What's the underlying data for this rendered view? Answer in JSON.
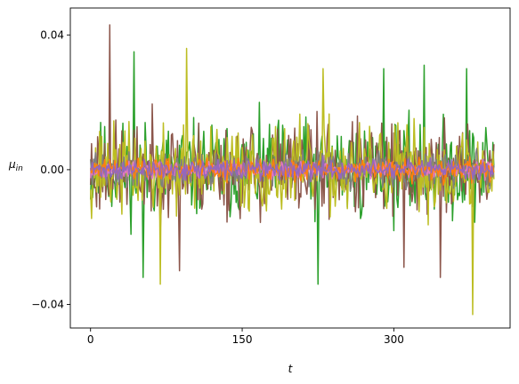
{
  "chart_data": {
    "type": "line",
    "title": "",
    "xlabel": "t",
    "ylabel_main": "μ",
    "ylabel_sub": "in",
    "xlim": [
      -20,
      415
    ],
    "ylim": [
      -0.047,
      0.048
    ],
    "xticks": [
      0,
      150,
      300
    ],
    "xtick_labels": [
      "0",
      "150",
      "300"
    ],
    "yticks": [
      -0.04,
      0.0,
      0.04
    ],
    "ytick_labels": [
      "−0.04",
      "0.00",
      "0.04"
    ],
    "grid": false,
    "legend": "none",
    "n_points": 400,
    "series": [
      {
        "color": "#2ca02c",
        "amplitude": 0.0175,
        "seed": 11,
        "spikes": [
          [
            43,
            0.035
          ],
          [
            52,
            -0.032
          ],
          [
            225,
            -0.034
          ],
          [
            290,
            0.03
          ],
          [
            330,
            0.031
          ],
          [
            372,
            0.03
          ]
        ]
      },
      {
        "color": "#8c564b",
        "amplitude": 0.0175,
        "seed": 23,
        "spikes": [
          [
            19,
            0.043
          ],
          [
            88,
            -0.03
          ],
          [
            310,
            -0.029
          ],
          [
            346,
            -0.032
          ]
        ]
      },
      {
        "color": "#bcbd22",
        "amplitude": 0.016,
        "seed": 37,
        "spikes": [
          [
            95,
            0.036
          ],
          [
            69,
            -0.034
          ],
          [
            378,
            -0.043
          ],
          [
            230,
            0.03
          ]
        ]
      },
      {
        "color": "#7f7f7f",
        "amplitude": 0.006,
        "seed": 41,
        "spikes": []
      },
      {
        "color": "#e377c2",
        "amplitude": 0.003,
        "seed": 53,
        "spikes": []
      },
      {
        "color": "#ff7f0e",
        "amplitude": 0.004,
        "seed": 61,
        "spikes": []
      },
      {
        "color": "#9467bd",
        "amplitude": 0.0035,
        "seed": 71,
        "spikes": []
      }
    ]
  }
}
